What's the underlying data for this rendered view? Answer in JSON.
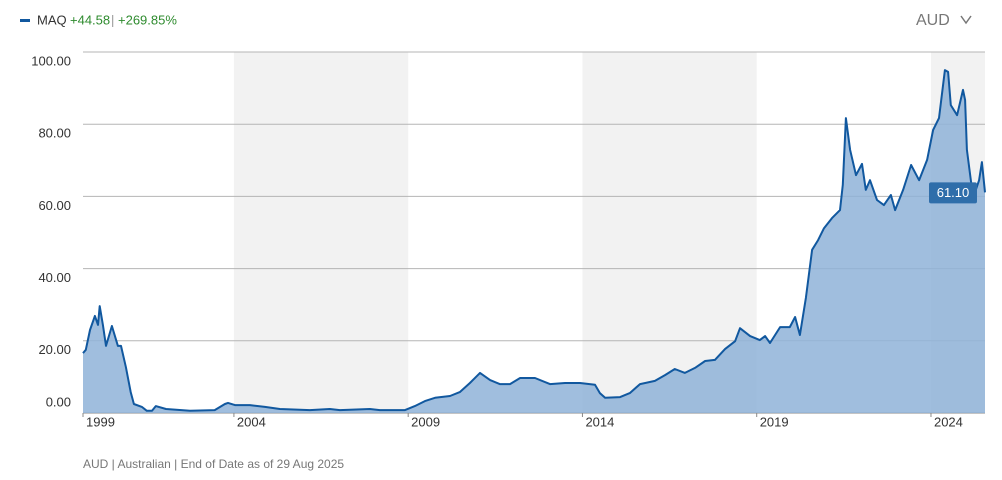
{
  "header": {
    "ticker": "MAQ",
    "change": "+44.58",
    "separator": "|",
    "change_pct": "+269.85%",
    "currency": "AUD"
  },
  "footer": "AUD | Australian | End of Date as of 29 Aug 2025",
  "chart_data": {
    "type": "area",
    "series": [
      {
        "name": "MAQ",
        "color": "#11589f",
        "fill": "#8fb3d8",
        "x": [
          1999.67,
          1999.75,
          1999.87,
          2000.01,
          2000.1,
          2000.15,
          2000.24,
          2000.33,
          2000.5,
          2000.67,
          2000.76,
          2000.9,
          2001.04,
          2001.13,
          2001.36,
          2001.5,
          2001.65,
          2001.76,
          2002.05,
          2002.74,
          2003.45,
          2003.74,
          2003.83,
          2004.03,
          2004.46,
          2004.89,
          2005.32,
          2006.18,
          2006.75,
          2007.04,
          2007.9,
          2008.19,
          2008.91,
          2009.19,
          2009.48,
          2009.77,
          2010.2,
          2010.48,
          2010.77,
          2011.06,
          2011.35,
          2011.63,
          2011.92,
          2012.21,
          2012.64,
          2013.07,
          2013.5,
          2013.93,
          2014.36,
          2014.5,
          2014.65,
          2015.08,
          2015.36,
          2015.65,
          2016.08,
          2016.37,
          2016.65,
          2016.94,
          2017.23,
          2017.52,
          2017.8,
          2018.09,
          2018.38,
          2018.52,
          2018.81,
          2019.09,
          2019.24,
          2019.38,
          2019.67,
          2019.95,
          2020.1,
          2020.24,
          2020.41,
          2020.59,
          2020.76,
          2020.93,
          2021.16,
          2021.39,
          2021.47,
          2021.56,
          2021.68,
          2021.85,
          2022.02,
          2022.13,
          2022.25,
          2022.45,
          2022.65,
          2022.85,
          2022.97,
          2023.2,
          2023.43,
          2023.66,
          2023.89,
          2024.06,
          2024.23,
          2024.4,
          2024.49,
          2024.57,
          2024.75,
          2024.92,
          2024.98,
          2025.03,
          2025.21,
          2025.38,
          2025.46,
          2025.55
        ],
        "values": [
          16.6,
          17.5,
          23.0,
          26.9,
          24.4,
          29.6,
          24.4,
          18.6,
          24.1,
          18.6,
          18.6,
          12.7,
          5.8,
          2.5,
          1.7,
          0.6,
          0.6,
          1.9,
          1.1,
          0.6,
          0.8,
          2.5,
          2.8,
          2.2,
          2.2,
          1.7,
          1.1,
          0.8,
          1.1,
          0.8,
          1.1,
          0.8,
          0.8,
          1.9,
          3.3,
          4.2,
          4.7,
          5.8,
          8.3,
          11.1,
          9.1,
          8.0,
          8.0,
          9.7,
          9.7,
          8.0,
          8.3,
          8.3,
          7.8,
          5.5,
          4.2,
          4.4,
          5.5,
          8.0,
          8.9,
          10.5,
          12.2,
          11.1,
          12.5,
          14.4,
          14.7,
          17.7,
          19.9,
          23.5,
          21.3,
          20.2,
          21.3,
          19.4,
          23.8,
          23.8,
          26.6,
          21.6,
          31.9,
          45.2,
          47.9,
          51.2,
          54.0,
          56.2,
          63.2,
          81.7,
          72.9,
          65.9,
          69.0,
          61.8,
          64.5,
          59.0,
          57.6,
          60.4,
          56.2,
          61.8,
          68.7,
          64.5,
          70.1,
          78.4,
          81.7,
          95.0,
          94.5,
          85.3,
          82.5,
          89.5,
          86.7,
          72.9,
          59.6,
          64.5,
          69.5,
          61.1
        ],
        "value_labels": [
          null,
          null,
          null,
          null,
          null,
          null,
          null,
          null,
          null,
          null,
          null,
          null,
          null,
          null,
          null,
          null,
          null,
          null,
          null,
          null,
          null,
          null,
          null,
          null,
          null,
          null,
          null,
          null,
          null,
          null,
          null,
          null,
          null,
          null,
          null,
          null,
          null,
          null,
          null,
          null,
          null,
          null,
          null,
          null,
          null,
          null,
          null,
          null,
          null,
          null,
          null,
          null,
          null,
          null,
          null,
          null,
          null,
          null,
          null,
          null,
          null,
          null,
          null,
          null,
          null,
          null,
          null,
          null,
          null,
          null,
          null,
          null,
          null,
          null,
          null,
          null,
          null,
          null,
          null,
          null,
          null,
          null,
          null,
          null,
          null,
          null,
          null,
          null,
          null,
          null,
          null,
          null,
          null,
          null,
          null,
          null,
          null,
          null,
          null,
          null,
          null,
          null,
          null,
          null,
          null,
          "61.10"
        ]
      }
    ],
    "xlim": [
      1999.67,
      2025.55
    ],
    "xticks": [
      1999,
      2004,
      2009,
      2014,
      2019,
      2024
    ],
    "ylim": [
      0,
      100
    ],
    "yticks": [
      {
        "value": 0,
        "label": "0.00"
      },
      {
        "value": 20,
        "label": "20.00"
      },
      {
        "value": 40,
        "label": "40.00"
      },
      {
        "value": 60,
        "label": "60.00"
      },
      {
        "value": 80,
        "label": "80.00"
      },
      {
        "value": 100,
        "label": "100.00"
      }
    ],
    "grid": true
  }
}
